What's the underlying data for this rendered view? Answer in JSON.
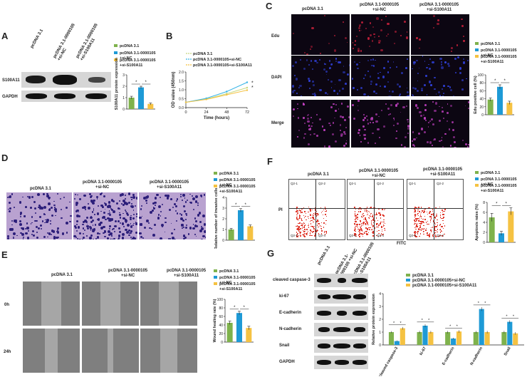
{
  "panels": {
    "A": {
      "label": "A",
      "lanes": [
        "pcDNA 3.1",
        "pcDNA 3.1-0000105 +si-NC",
        "pcDNA 3.1-0000105 +si-S100A11"
      ],
      "rows": [
        "S100A11",
        "GAPDH"
      ]
    },
    "B": {
      "label": "B"
    },
    "C": {
      "label": "C",
      "columns": [
        "pcDNA 3.1",
        "pcDNA 3.1-0000105\n+si-NC",
        "pcDNA 3.1-0000105\n+si-S100A11"
      ],
      "rows": [
        "Edu",
        "DAPI",
        "Merge"
      ]
    },
    "D": {
      "label": "D",
      "columns": [
        "pcDNA 3.1",
        "pcDNA 3.1-0000105\n+si-NC",
        "pcDNA 3.1-0000105\n+si-S100A11"
      ]
    },
    "E": {
      "label": "E",
      "columns": [
        "pcDNA 3.1",
        "pcDNA 3.1-0000105\n+si-NC",
        "pcDNA 3.1-0000105\n+si-S100A11"
      ],
      "rows": [
        "0h",
        "24h"
      ]
    },
    "F": {
      "label": "F",
      "columns": [
        "pcDNA 3.1",
        "pcDNA 3.1-0000105\n+si-NC",
        "pcDNA 3.1-0000105\n+si-S100A11"
      ],
      "ylabel": "PI",
      "xlabel": "FITC",
      "quadrants": [
        "Q2-1",
        "Q2-2",
        "Q2-3",
        "Q2-4"
      ]
    },
    "G": {
      "label": "G",
      "lanes": [
        "pcDNA 3.1",
        "pcDNA 3.1-0000105 +si-NC",
        "pcDNA 3.1-0000105 +si-S100A11"
      ],
      "rows": [
        "cleaved caspase-3",
        "ki-67",
        "E-cadherin",
        "N-cadherin",
        "Snail",
        "GAPDH"
      ]
    }
  },
  "chart_data": [
    {
      "id": "A",
      "type": "bar",
      "categories": [
        "pcDNA 3.1",
        "pcDNA 3.1-0000105+si-NC",
        "pcDNA 3.1-0000105+si-S100A11"
      ],
      "values": [
        1.0,
        1.9,
        0.45
      ],
      "errors": [
        0.12,
        0.1,
        0.08
      ],
      "colors": [
        "#7fb24c",
        "#1e9ad6",
        "#f5c242"
      ],
      "ylabel": "Relative S100A11 protein expression",
      "ylim": [
        0,
        3
      ],
      "yticks": [
        "0",
        "1",
        "2",
        "3"
      ],
      "legend": [
        "pcDNA 3.1",
        "pcDNA 3.1-0000105\n+si-NC",
        "pcDNA 3.1-0000105\n+si-S100A11"
      ],
      "significance": [
        "*",
        "*"
      ]
    },
    {
      "id": "B",
      "type": "line",
      "x": [
        0,
        24,
        48,
        72
      ],
      "xticks": [
        "0",
        "24",
        "48",
        "72"
      ],
      "xlabel": "Time (hours)",
      "ylabel": "OD value (450nm)",
      "ylim": [
        0.0,
        2.0
      ],
      "yticks": [
        "0.0",
        "0.5",
        "1.0",
        "1.5",
        "2.0"
      ],
      "series": [
        {
          "name": "pcDNA 3.1",
          "values": [
            0.3,
            0.48,
            0.78,
            1.12
          ],
          "color": "#c8d880"
        },
        {
          "name": "pcDNA 3.1-0000105+si-NC",
          "values": [
            0.3,
            0.52,
            0.9,
            1.42
          ],
          "color": "#36b4e6"
        },
        {
          "name": "pcDNA 3.1-0000105+si-S100A11",
          "values": [
            0.3,
            0.46,
            0.72,
            0.98
          ],
          "color": "#f5c242"
        }
      ],
      "significance": [
        "*",
        "*"
      ]
    },
    {
      "id": "C",
      "type": "bar",
      "categories": [
        "pcDNA 3.1",
        "pcDNA 3.1-0000105+si-NC",
        "pcDNA 3.1-0000105+si-S100A11"
      ],
      "values": [
        38,
        70,
        30
      ],
      "errors": [
        4,
        5,
        4
      ],
      "colors": [
        "#7fb24c",
        "#1e9ad6",
        "#f5c242"
      ],
      "ylabel": "Edu positive cell (%)",
      "ylim": [
        0,
        100
      ],
      "yticks": [
        "0",
        "20",
        "40",
        "60",
        "80",
        "100"
      ],
      "legend": [
        "pcDNA 3.1",
        "pcDNA 3.1-0000105\n+si-NC",
        "pcDNA 3.1-0000105\n+si-S100A11"
      ],
      "significance": [
        "*",
        "*"
      ]
    },
    {
      "id": "D",
      "type": "bar",
      "categories": [
        "pcDNA 3.1",
        "pcDNA 3.1-0000105+si-NC",
        "pcDNA 3.1-0000105+si-S100A11"
      ],
      "values": [
        1.0,
        2.8,
        1.3
      ],
      "errors": [
        0.1,
        0.15,
        0.12
      ],
      "colors": [
        "#7fb24c",
        "#1e9ad6",
        "#f5c242"
      ],
      "ylabel": "Relative number of invasive cells",
      "ylim": [
        0,
        4
      ],
      "yticks": [
        "0",
        "1",
        "2",
        "3",
        "4"
      ],
      "legend": [
        "pcDNA 3.1",
        "pcDNA 3.1-0000105\n+si-NC",
        "pcDNA 3.1-0000105\n+si-S100A11"
      ],
      "significance": [
        "*",
        "*"
      ]
    },
    {
      "id": "E",
      "type": "bar",
      "categories": [
        "pcDNA 3.1",
        "pcDNA 3.1-0000105+si-NC",
        "pcDNA 3.1-0000105+si-S100A11"
      ],
      "values": [
        45,
        68,
        33
      ],
      "errors": [
        4,
        4,
        4
      ],
      "colors": [
        "#7fb24c",
        "#1e9ad6",
        "#f5c242"
      ],
      "ylabel": "Wound healing rate (%)",
      "ylim": [
        0,
        100
      ],
      "yticks": [
        "0",
        "20",
        "40",
        "60",
        "80",
        "100"
      ],
      "legend": [
        "pcDNA 3.1",
        "pcDNA 3.1-0000105\n+si-NC",
        "pcDNA 3.1-0000105\n+si-S100A11"
      ],
      "significance": [
        "*",
        "*"
      ]
    },
    {
      "id": "F",
      "type": "bar",
      "categories": [
        "pcDNA 3.1",
        "pcDNA 3.1-0000105+si-NC",
        "pcDNA 3.1-0000105+si-S100A11"
      ],
      "values": [
        5.0,
        1.8,
        6.2
      ],
      "errors": [
        0.8,
        0.4,
        0.7
      ],
      "colors": [
        "#7fb24c",
        "#1e9ad6",
        "#f5c242"
      ],
      "ylabel": "Apoptosis rates (%)",
      "ylim": [
        0,
        8
      ],
      "yticks": [
        "0",
        "2",
        "4",
        "6",
        "8"
      ],
      "legend": [
        "pcDNA 3.1",
        "pcDNA 3.1-0000105\n+si-NC",
        "pcDNA 3.1-0000105\n+si-S100A11"
      ],
      "significance": [
        "*",
        "*"
      ]
    },
    {
      "id": "G",
      "type": "bar",
      "categories": [
        "cleaved caspase-3",
        "ki-67",
        "E-cadherin",
        "N-cadherin",
        "Snail"
      ],
      "series": [
        {
          "name": "pcDNA 3.1",
          "values": [
            1.0,
            1.0,
            1.0,
            1.0,
            1.0
          ],
          "errors": [
            0.08,
            0.1,
            0.1,
            0.1,
            0.1
          ],
          "color": "#7fb24c"
        },
        {
          "name": "pcDNA 3.1-0000105+si-NC",
          "values": [
            0.3,
            1.5,
            0.5,
            2.8,
            1.8
          ],
          "errors": [
            0.05,
            0.12,
            0.06,
            0.15,
            0.12
          ],
          "color": "#1e9ad6"
        },
        {
          "name": "pcDNA 3.1-0000105+si-S100A11",
          "values": [
            1.3,
            1.0,
            1.05,
            1.0,
            0.9
          ],
          "errors": [
            0.1,
            0.1,
            0.1,
            0.1,
            0.1
          ],
          "color": "#f5c242"
        }
      ],
      "ylabel": "Relative protein expression",
      "ylim": [
        0,
        4
      ],
      "yticks": [
        "0",
        "1",
        "2",
        "3",
        "4"
      ],
      "legend": [
        "pcDNA 3.1",
        "pcDNA 3.1-0000105+si-NC",
        "pcDNA 3.1-0000105+si-S100A11"
      ],
      "significance": [
        "*",
        "*"
      ]
    }
  ]
}
